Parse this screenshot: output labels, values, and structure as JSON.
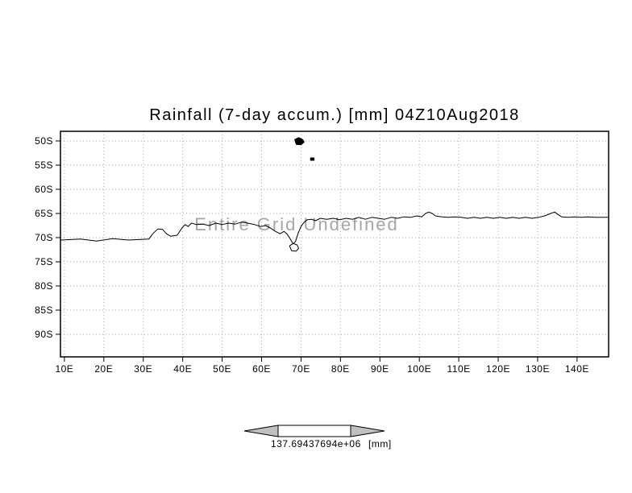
{
  "page": {
    "background": "#ffffff"
  },
  "chart_data": {
    "type": "line",
    "title": "Rainfall (7-day accum.) [mm] 04Z10Aug2018",
    "annotation": "Entire Grid Undefined",
    "x_axis": {
      "tick_labels": [
        "10E",
        "20E",
        "30E",
        "40E",
        "50E",
        "60E",
        "70E",
        "80E",
        "90E",
        "100E",
        "110E",
        "120E",
        "130E",
        "140E"
      ],
      "values": [
        10,
        20,
        30,
        40,
        50,
        60,
        70,
        80,
        90,
        100,
        110,
        120,
        130,
        140
      ],
      "range": [
        9,
        148
      ]
    },
    "y_axis": {
      "tick_labels": [
        "50S",
        "55S",
        "60S",
        "65S",
        "70S",
        "75S",
        "80S",
        "85S",
        "90S"
      ],
      "values": [
        -50,
        -55,
        -60,
        -65,
        -70,
        -75,
        -80,
        -85,
        -90
      ],
      "range": [
        -48,
        -94.67
      ]
    },
    "grid": {
      "style": "dotted",
      "color": "#aaaaaa"
    },
    "series": [],
    "coastline": {
      "stroke": "#000000",
      "paths": [
        {
          "closed": false,
          "fill": "none",
          "points": [
            [
              9.0,
              -70.5
            ],
            [
              14.1,
              -70.3
            ],
            [
              18.2,
              -70.7
            ],
            [
              22.2,
              -70.2
            ],
            [
              26.3,
              -70.5
            ],
            [
              31.4,
              -70.3
            ],
            [
              32.4,
              -69.2
            ],
            [
              33.7,
              -68.2
            ],
            [
              34.9,
              -68.3
            ],
            [
              35.9,
              -69.2
            ],
            [
              36.9,
              -69.7
            ],
            [
              38.6,
              -69.5
            ],
            [
              39.8,
              -68.0
            ],
            [
              40.6,
              -67.3
            ],
            [
              41.4,
              -67.7
            ],
            [
              42.2,
              -67.0
            ],
            [
              43.5,
              -67.3
            ],
            [
              45.1,
              -67.2
            ],
            [
              46.7,
              -67.5
            ],
            [
              48.4,
              -67.0
            ],
            [
              50.0,
              -67.3
            ],
            [
              51.6,
              -67.0
            ],
            [
              53.3,
              -67.2
            ],
            [
              54.9,
              -66.8
            ],
            [
              56.5,
              -67.0
            ],
            [
              58.2,
              -67.3
            ],
            [
              59.8,
              -67.7
            ],
            [
              61.0,
              -67.5
            ],
            [
              62.2,
              -68.0
            ],
            [
              63.5,
              -68.7
            ],
            [
              64.7,
              -69.2
            ],
            [
              65.7,
              -68.7
            ],
            [
              66.5,
              -69.3
            ],
            [
              67.3,
              -70.3
            ],
            [
              68.0,
              -71.3
            ],
            [
              68.6,
              -70.8
            ],
            [
              69.0,
              -69.8
            ],
            [
              69.4,
              -68.8
            ],
            [
              70.0,
              -67.7
            ],
            [
              70.8,
              -66.8
            ],
            [
              71.6,
              -66.3
            ],
            [
              72.7,
              -66.2
            ],
            [
              73.7,
              -66.5
            ],
            [
              74.9,
              -66.0
            ],
            [
              76.5,
              -66.2
            ],
            [
              78.2,
              -66.0
            ],
            [
              79.8,
              -66.3
            ],
            [
              81.4,
              -66.0
            ],
            [
              83.1,
              -66.2
            ],
            [
              84.7,
              -65.8
            ],
            [
              86.3,
              -66.2
            ],
            [
              88.0,
              -65.8
            ],
            [
              89.6,
              -66.0
            ],
            [
              91.2,
              -66.2
            ],
            [
              92.9,
              -65.8
            ],
            [
              94.5,
              -66.0
            ],
            [
              96.1,
              -65.7
            ],
            [
              97.8,
              -65.8
            ],
            [
              99.4,
              -65.5
            ],
            [
              100.6,
              -65.7
            ],
            [
              101.6,
              -65.0
            ],
            [
              102.4,
              -64.7
            ],
            [
              103.3,
              -65.0
            ],
            [
              104.1,
              -65.5
            ],
            [
              105.7,
              -65.7
            ],
            [
              107.3,
              -65.8
            ],
            [
              109.0,
              -65.7
            ],
            [
              110.6,
              -65.8
            ],
            [
              112.2,
              -66.0
            ],
            [
              113.9,
              -65.8
            ],
            [
              115.5,
              -66.0
            ],
            [
              117.1,
              -65.8
            ],
            [
              118.8,
              -66.0
            ],
            [
              120.4,
              -65.8
            ],
            [
              122.0,
              -66.0
            ],
            [
              123.7,
              -65.8
            ],
            [
              125.3,
              -66.0
            ],
            [
              126.9,
              -65.8
            ],
            [
              128.6,
              -66.0
            ],
            [
              130.2,
              -65.8
            ],
            [
              131.8,
              -65.5
            ],
            [
              133.3,
              -65.0
            ],
            [
              134.3,
              -64.7
            ],
            [
              135.1,
              -65.2
            ],
            [
              136.1,
              -65.7
            ],
            [
              137.8,
              -65.8
            ],
            [
              139.4,
              -65.7
            ],
            [
              141.0,
              -65.8
            ],
            [
              142.7,
              -65.7
            ],
            [
              144.7,
              -65.8
            ],
            [
              146.3,
              -65.8
            ],
            [
              147.8,
              -65.8
            ]
          ]
        },
        {
          "closed": true,
          "fill": "#000000",
          "points": [
            [
              68.4,
              -49.7
            ],
            [
              69.4,
              -49.3
            ],
            [
              70.4,
              -49.7
            ],
            [
              70.8,
              -50.2
            ],
            [
              70.0,
              -50.8
            ],
            [
              68.8,
              -50.7
            ]
          ]
        },
        {
          "closed": true,
          "fill": "#000000",
          "points": [
            [
              72.4,
              -53.5
            ],
            [
              73.3,
              -53.5
            ],
            [
              73.3,
              -54.0
            ],
            [
              72.4,
              -54.0
            ]
          ]
        },
        {
          "closed": true,
          "fill": "none",
          "points": [
            [
              67.1,
              -71.7
            ],
            [
              68.0,
              -71.2
            ],
            [
              69.0,
              -71.5
            ],
            [
              69.4,
              -72.2
            ],
            [
              68.8,
              -72.8
            ],
            [
              67.6,
              -72.7
            ]
          ]
        }
      ]
    },
    "colorbar": {
      "value_text": "137.69437694e+06",
      "units": "[mm]",
      "arrow_fill": "#c0c0c0",
      "bar_fill": "#ffffff"
    }
  }
}
